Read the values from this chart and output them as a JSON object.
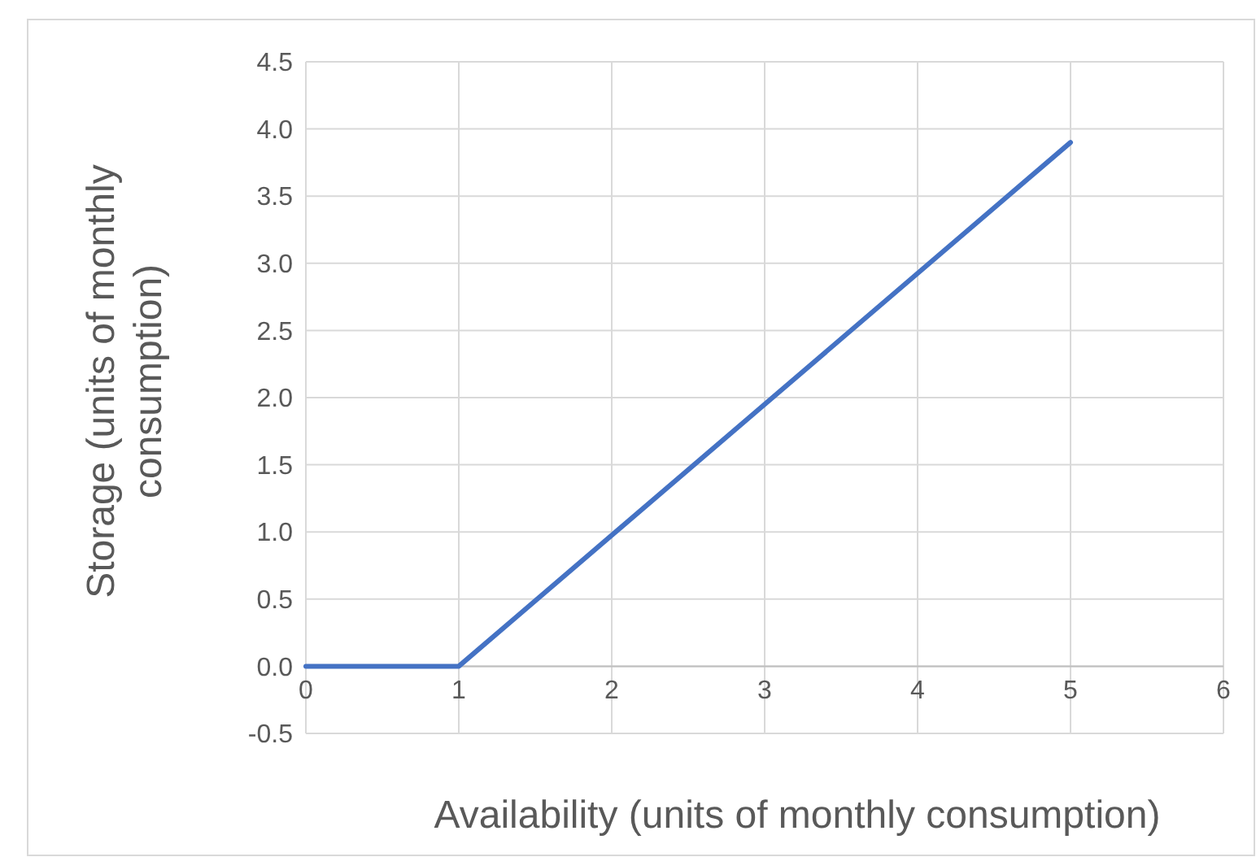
{
  "chart_data": {
    "type": "line",
    "xlabel": "Availability (units of monthly consumption)",
    "ylabel": "Storage (units of monthly consumption)",
    "x": [
      0,
      0.95,
      1,
      5
    ],
    "series": [
      {
        "color": "#4472c4",
        "values": [
          0,
          0,
          0,
          3.9
        ]
      }
    ],
    "xlim": [
      0,
      6
    ],
    "xticks": [
      0,
      1,
      2,
      3,
      4,
      5,
      6
    ],
    "ylim": [
      -0.5,
      4.5
    ],
    "yticks": [
      {
        "value": -0.5,
        "label": "-0.5"
      },
      {
        "value": 0,
        "label": "0.0"
      },
      {
        "value": 0.5,
        "label": "0.5"
      },
      {
        "value": 1,
        "label": "1.0"
      },
      {
        "value": 1.5,
        "label": "1.5"
      },
      {
        "value": 2,
        "label": "2.0"
      },
      {
        "value": 2.5,
        "label": "2.5"
      },
      {
        "value": 3,
        "label": "3.0"
      },
      {
        "value": 3.5,
        "label": "3.5"
      },
      {
        "value": 4,
        "label": "4.0"
      },
      {
        "value": 4.5,
        "label": "4.5"
      }
    ],
    "grid": true,
    "marker": "none",
    "line_style": "solid"
  }
}
